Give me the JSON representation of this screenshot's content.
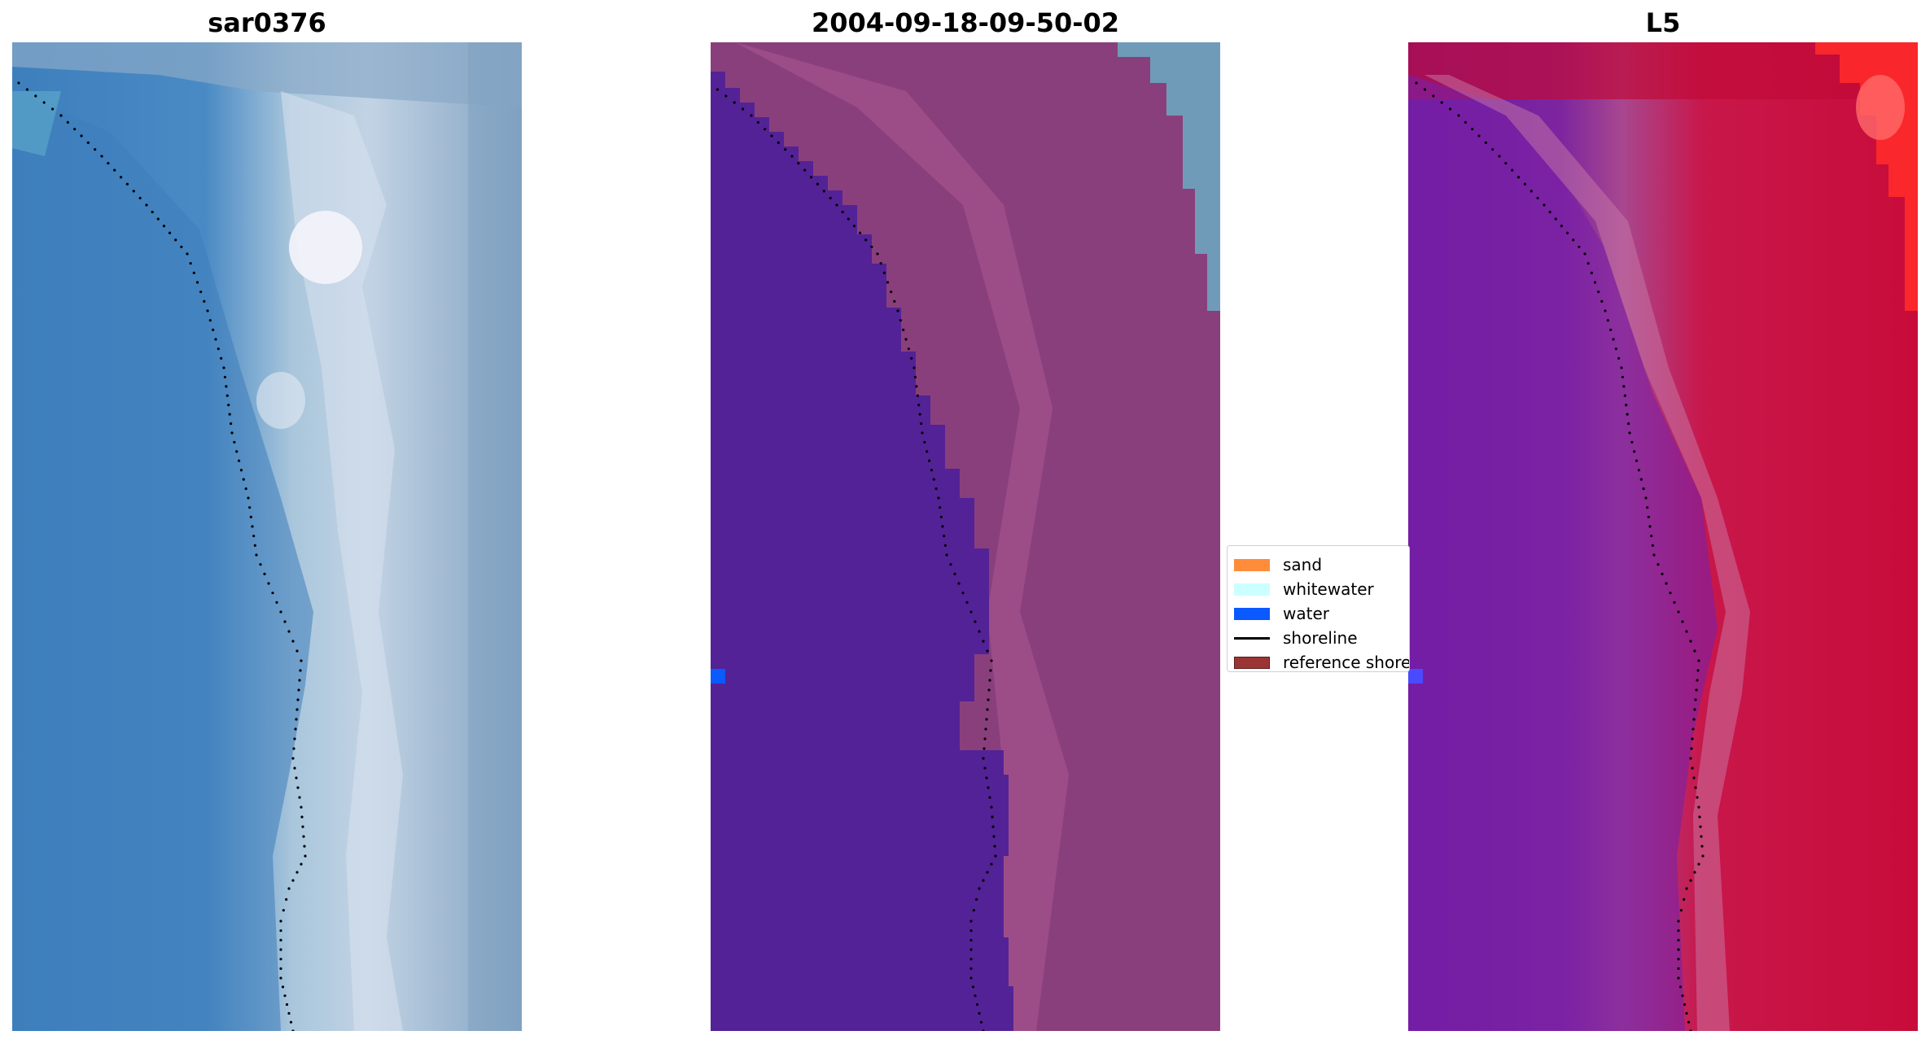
{
  "panels": [
    {
      "title": "sar0376",
      "kind": "rgb"
    },
    {
      "title": "2004-09-18-09-50-02",
      "kind": "classified"
    },
    {
      "title": "L5",
      "kind": "index"
    }
  ],
  "legend": {
    "items": [
      {
        "label": "sand",
        "color": "#ff8c3a",
        "kind": "patch"
      },
      {
        "label": "whitewater",
        "color": "#ccffff",
        "kind": "patch"
      },
      {
        "label": "water",
        "color": "#0a5aff",
        "kind": "patch"
      },
      {
        "label": "shoreline",
        "color": "#000000",
        "kind": "line"
      },
      {
        "label": "reference shoreline",
        "color": "#9b3535",
        "kind": "patch"
      }
    ]
  },
  "colors": {
    "water_class": "#532296",
    "land_class": "#8a3f7d",
    "shoreline_dots": "#000000"
  }
}
